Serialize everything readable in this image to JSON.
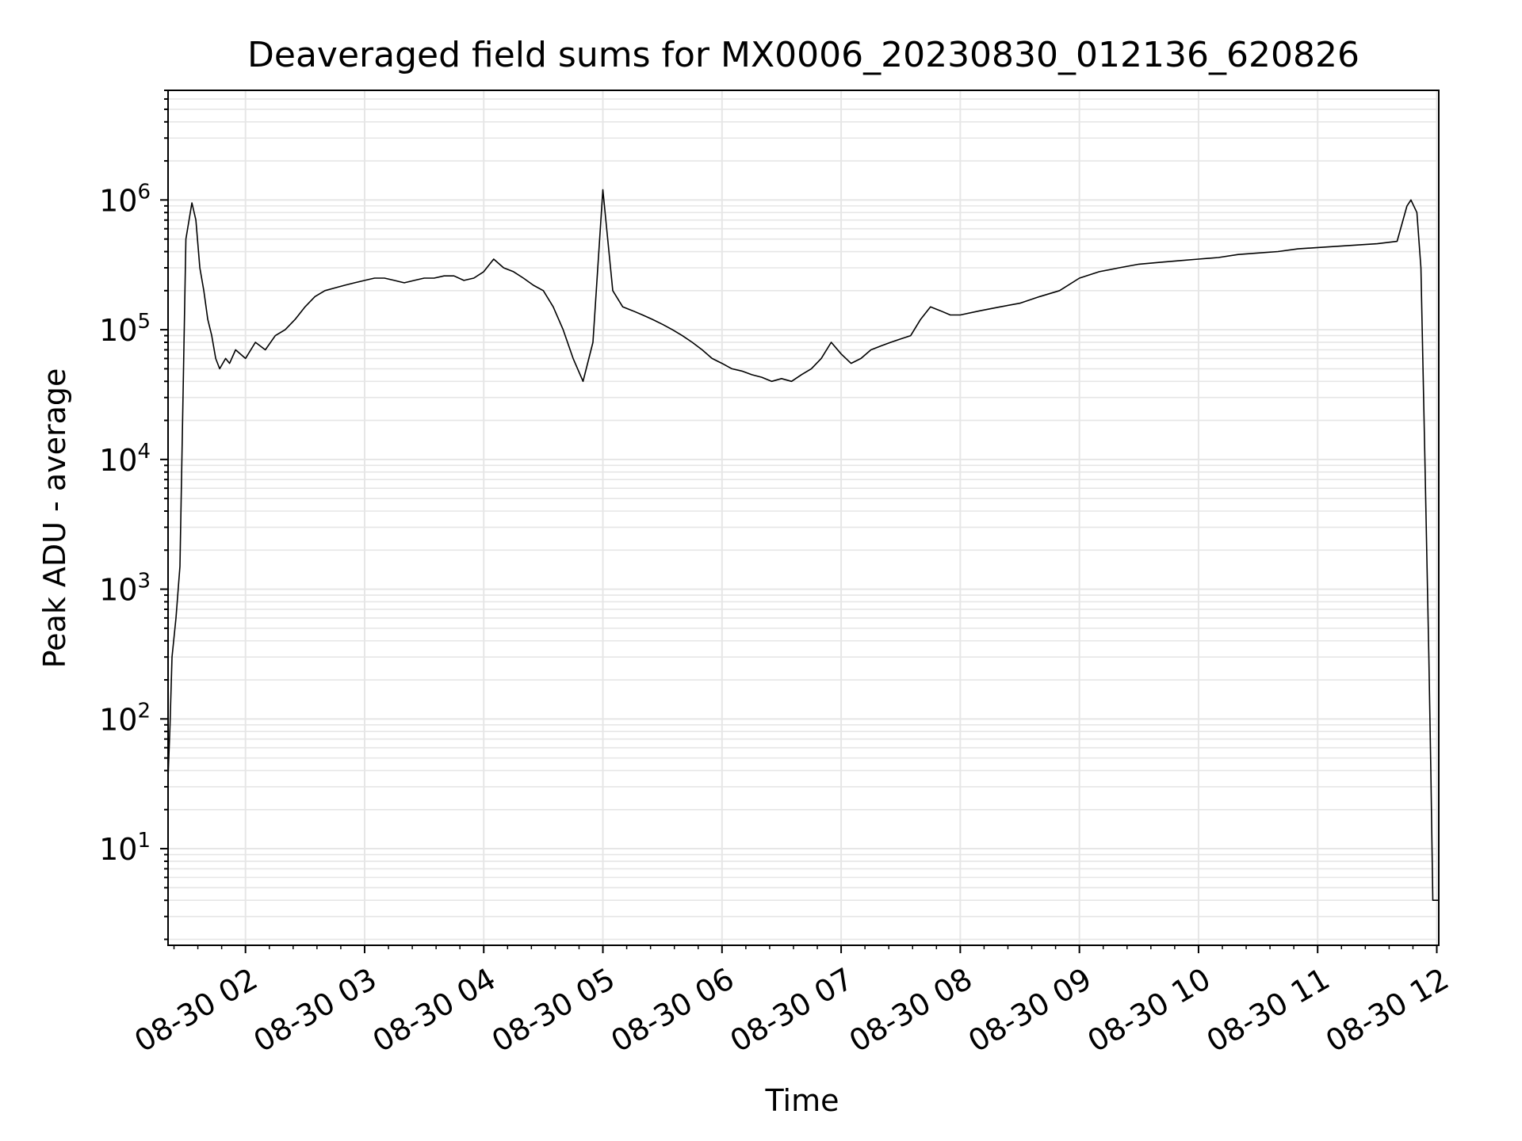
{
  "chart_data": {
    "type": "line",
    "title": "Deaveraged field sums for MX0006_20230830_012136_620826",
    "xlabel": "Time",
    "ylabel": "Peak ADU - average",
    "yscale": "log",
    "ylim": [
      1.8,
      7000000
    ],
    "xlim": [
      "2023-08-30 01:21",
      "2023-08-30 12:01"
    ],
    "x_ticks": [
      "08-30 02",
      "08-30 03",
      "08-30 04",
      "08-30 05",
      "08-30 06",
      "08-30 07",
      "08-30 08",
      "08-30 09",
      "08-30 10",
      "08-30 11",
      "08-30 12"
    ],
    "y_ticks": [
      {
        "base": "10",
        "exp": "1"
      },
      {
        "base": "10",
        "exp": "2"
      },
      {
        "base": "10",
        "exp": "3"
      },
      {
        "base": "10",
        "exp": "4"
      },
      {
        "base": "10",
        "exp": "5"
      },
      {
        "base": "10",
        "exp": "6"
      }
    ],
    "grid": true,
    "line_color": "#000000",
    "grid_color": "#e6e6e6",
    "series": [
      {
        "x": [
          "01:21",
          "01:22",
          "01:23",
          "01:25",
          "01:27",
          "01:30",
          "01:33",
          "01:35",
          "01:37",
          "01:39",
          "01:41",
          "01:43",
          "01:45",
          "01:47",
          "01:50",
          "01:52",
          "01:55",
          "02:00",
          "02:05",
          "02:10",
          "02:15",
          "02:20",
          "02:25",
          "02:30",
          "02:35",
          "02:40",
          "02:45",
          "02:50",
          "02:55",
          "03:00",
          "03:05",
          "03:10",
          "03:15",
          "03:20",
          "03:25",
          "03:30",
          "03:35",
          "03:40",
          "03:45",
          "03:50",
          "03:55",
          "04:00",
          "04:05",
          "04:10",
          "04:15",
          "04:20",
          "04:25",
          "04:30",
          "04:35",
          "04:40",
          "04:45",
          "04:50",
          "04:55",
          "05:00",
          "05:05",
          "05:10",
          "05:15",
          "05:20",
          "05:25",
          "05:30",
          "05:35",
          "05:40",
          "05:45",
          "05:50",
          "05:55",
          "06:00",
          "06:05",
          "06:10",
          "06:15",
          "06:20",
          "06:25",
          "06:30",
          "06:35",
          "06:40",
          "06:45",
          "06:50",
          "06:55",
          "07:00",
          "07:05",
          "07:10",
          "07:15",
          "07:20",
          "07:25",
          "07:30",
          "07:35",
          "07:40",
          "07:45",
          "07:50",
          "07:55",
          "08:00",
          "08:10",
          "08:20",
          "08:30",
          "08:40",
          "08:50",
          "09:00",
          "09:10",
          "09:20",
          "09:30",
          "09:40",
          "09:50",
          "10:00",
          "10:10",
          "10:20",
          "10:30",
          "10:40",
          "10:50",
          "11:00",
          "11:10",
          "11:20",
          "11:30",
          "11:40",
          "11:45",
          "11:47",
          "11:50",
          "11:52",
          "11:54",
          "11:56",
          "11:57",
          "11:58",
          "11:59",
          "12:00",
          "12:01"
        ],
        "y": [
          35,
          90,
          300,
          600,
          1500,
          500000,
          950000,
          700000,
          300000,
          200000,
          120000,
          90000,
          60000,
          50000,
          60000,
          55000,
          70000,
          60000,
          80000,
          70000,
          90000,
          100000,
          120000,
          150000,
          180000,
          200000,
          210000,
          220000,
          230000,
          240000,
          250000,
          250000,
          240000,
          230000,
          240000,
          250000,
          250000,
          260000,
          260000,
          240000,
          250000,
          280000,
          350000,
          300000,
          280000,
          250000,
          220000,
          200000,
          150000,
          100000,
          60000,
          40000,
          80000,
          1200000,
          200000,
          150000,
          140000,
          130000,
          120000,
          110000,
          100000,
          90000,
          80000,
          70000,
          60000,
          55000,
          50000,
          48000,
          45000,
          43000,
          40000,
          42000,
          40000,
          45000,
          50000,
          60000,
          80000,
          65000,
          55000,
          60000,
          70000,
          75000,
          80000,
          85000,
          90000,
          120000,
          150000,
          140000,
          130000,
          130000,
          140000,
          150000,
          160000,
          180000,
          200000,
          250000,
          280000,
          300000,
          320000,
          330000,
          340000,
          350000,
          360000,
          380000,
          390000,
          400000,
          420000,
          430000,
          440000,
          450000,
          460000,
          480000,
          900000,
          1000000,
          800000,
          300000,
          10000,
          300,
          40,
          4,
          4,
          4,
          4
        ]
      }
    ]
  }
}
